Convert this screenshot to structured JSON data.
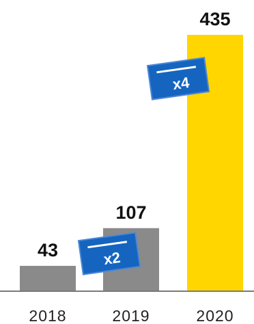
{
  "chart_data": {
    "type": "bar",
    "categories": [
      "2018",
      "2019",
      "2020"
    ],
    "values": [
      43,
      107,
      435
    ],
    "value_labels": [
      "43",
      "107",
      "435"
    ],
    "ylim": [
      0,
      435
    ],
    "title": "",
    "xlabel": "",
    "ylabel": "",
    "grid": false,
    "legend": "none",
    "colors": {
      "bars": [
        "#8a8a8a",
        "#8a8a8a",
        "#ffd600"
      ],
      "baseline": "#7a7a7a",
      "badge": "#1565c0",
      "badge_border": "#4e88d4"
    },
    "annotations": [
      {
        "text": "x2",
        "between": [
          "2018",
          "2019"
        ]
      },
      {
        "text": "x4",
        "between": [
          "2019",
          "2020"
        ]
      }
    ]
  }
}
